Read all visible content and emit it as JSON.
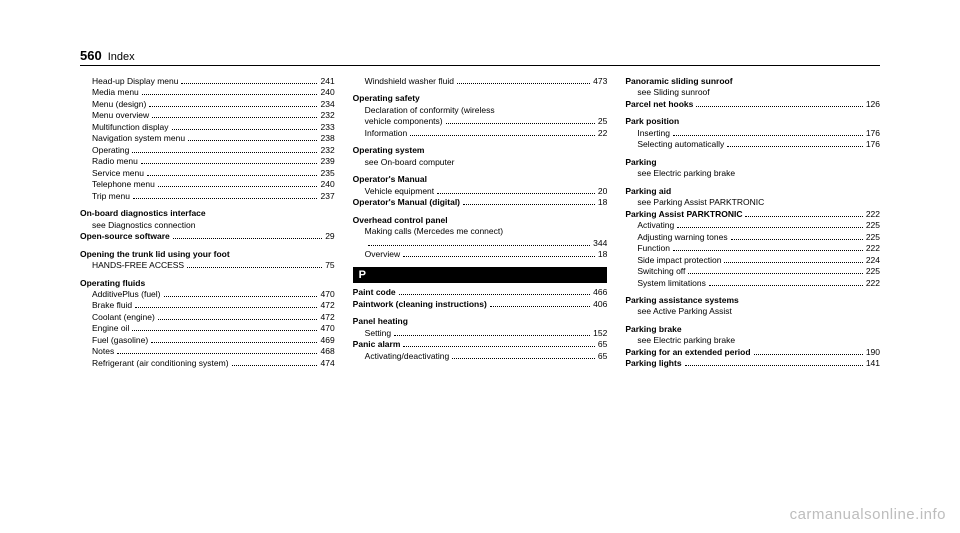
{
  "page": {
    "number": "560",
    "title": "Index"
  },
  "watermark": "carmanualsonline.info",
  "sectionTab": "P",
  "columns": [
    [
      {
        "type": "line",
        "sub": true,
        "label": "Head-up Display menu",
        "page": "241"
      },
      {
        "type": "line",
        "sub": true,
        "label": "Media menu",
        "page": "240"
      },
      {
        "type": "line",
        "sub": true,
        "label": "Menu (design)",
        "page": "234"
      },
      {
        "type": "line",
        "sub": true,
        "label": "Menu overview",
        "page": "232"
      },
      {
        "type": "line",
        "sub": true,
        "label": "Multifunction display",
        "page": "233"
      },
      {
        "type": "line",
        "sub": true,
        "label": "Navigation system menu",
        "page": "238"
      },
      {
        "type": "line",
        "sub": true,
        "label": "Operating",
        "page": "232"
      },
      {
        "type": "line",
        "sub": true,
        "label": "Radio menu",
        "page": "239"
      },
      {
        "type": "line",
        "sub": true,
        "label": "Service menu",
        "page": "235"
      },
      {
        "type": "line",
        "sub": true,
        "label": "Telephone menu",
        "page": "240"
      },
      {
        "type": "line",
        "sub": true,
        "label": "Trip menu",
        "page": "237"
      },
      {
        "type": "heading",
        "label": "On-board diagnostics interface"
      },
      {
        "type": "plain",
        "sub": true,
        "label": "see Diagnostics connection"
      },
      {
        "type": "line",
        "bold": true,
        "label": "Open-source software",
        "page": "29"
      },
      {
        "type": "heading",
        "label": "Opening the trunk lid using your foot"
      },
      {
        "type": "line",
        "sub": true,
        "label": "HANDS-FREE ACCESS",
        "page": "75"
      },
      {
        "type": "heading",
        "label": "Operating fluids"
      },
      {
        "type": "line",
        "sub": true,
        "label": "AdditivePlus (fuel)",
        "page": "470"
      },
      {
        "type": "line",
        "sub": true,
        "label": "Brake fluid",
        "page": "472"
      },
      {
        "type": "line",
        "sub": true,
        "label": "Coolant (engine)",
        "page": "472"
      },
      {
        "type": "line",
        "sub": true,
        "label": "Engine oil",
        "page": "470"
      },
      {
        "type": "line",
        "sub": true,
        "label": "Fuel (gasoline)",
        "page": "469"
      },
      {
        "type": "line",
        "sub": true,
        "label": "Notes",
        "page": "468"
      },
      {
        "type": "line",
        "sub": true,
        "label": "Refrigerant (air conditioning system)",
        "page": "474"
      }
    ],
    [
      {
        "type": "line",
        "sub": true,
        "label": "Windshield washer fluid",
        "page": "473"
      },
      {
        "type": "heading",
        "label": "Operating safety"
      },
      {
        "type": "plain",
        "sub": true,
        "label": "Declaration of conformity (wireless"
      },
      {
        "type": "line",
        "sub": true,
        "label": "vehicle components)",
        "page": "25"
      },
      {
        "type": "line",
        "sub": true,
        "label": "Information",
        "page": "22"
      },
      {
        "type": "heading",
        "label": "Operating system"
      },
      {
        "type": "plain",
        "sub": true,
        "label": "see On-board computer"
      },
      {
        "type": "heading",
        "label": "Operator's Manual"
      },
      {
        "type": "line",
        "sub": true,
        "label": "Vehicle equipment",
        "page": "20"
      },
      {
        "type": "line",
        "bold": true,
        "label": "Operator's Manual (digital)",
        "page": "18"
      },
      {
        "type": "heading",
        "label": "Overhead control panel"
      },
      {
        "type": "plain",
        "sub": true,
        "label": "Making calls (Mercedes me connect)"
      },
      {
        "type": "line",
        "sub": true,
        "label": "",
        "page": "344"
      },
      {
        "type": "line",
        "sub": true,
        "label": "Overview",
        "page": "18"
      },
      {
        "type": "tab"
      },
      {
        "type": "line",
        "bold": true,
        "label": "Paint code",
        "page": "466"
      },
      {
        "type": "line",
        "bold": true,
        "label": "Paintwork (cleaning instructions)",
        "page": "406"
      },
      {
        "type": "heading",
        "label": "Panel heating"
      },
      {
        "type": "line",
        "sub": true,
        "label": "Setting",
        "page": "152"
      },
      {
        "type": "line",
        "bold": true,
        "label": "Panic alarm",
        "page": "65"
      },
      {
        "type": "line",
        "sub": true,
        "label": "Activating/deactivating",
        "page": "65"
      }
    ],
    [
      {
        "type": "heading",
        "first": true,
        "label": "Panoramic sliding sunroof"
      },
      {
        "type": "plain",
        "sub": true,
        "label": "see Sliding sunroof"
      },
      {
        "type": "line",
        "bold": true,
        "label": "Parcel net hooks",
        "page": "126"
      },
      {
        "type": "heading",
        "label": "Park position"
      },
      {
        "type": "line",
        "sub": true,
        "label": "Inserting",
        "page": "176"
      },
      {
        "type": "line",
        "sub": true,
        "label": "Selecting automatically",
        "page": "176"
      },
      {
        "type": "heading",
        "label": "Parking"
      },
      {
        "type": "plain",
        "sub": true,
        "label": "see Electric parking brake"
      },
      {
        "type": "heading",
        "label": "Parking aid"
      },
      {
        "type": "plain",
        "sub": true,
        "label": "see Parking Assist PARKTRONIC"
      },
      {
        "type": "line",
        "bold": true,
        "label": "Parking Assist PARKTRONIC",
        "page": "222"
      },
      {
        "type": "line",
        "sub": true,
        "label": "Activating",
        "page": "225"
      },
      {
        "type": "line",
        "sub": true,
        "label": "Adjusting warning tones",
        "page": "225"
      },
      {
        "type": "line",
        "sub": true,
        "label": "Function",
        "page": "222"
      },
      {
        "type": "line",
        "sub": true,
        "label": "Side impact protection",
        "page": "224"
      },
      {
        "type": "line",
        "sub": true,
        "label": "Switching off",
        "page": "225"
      },
      {
        "type": "line",
        "sub": true,
        "label": "System limitations",
        "page": "222"
      },
      {
        "type": "heading",
        "label": "Parking assistance systems"
      },
      {
        "type": "plain",
        "sub": true,
        "label": "see Active Parking Assist"
      },
      {
        "type": "heading",
        "label": "Parking brake"
      },
      {
        "type": "plain",
        "sub": true,
        "label": "see Electric parking brake"
      },
      {
        "type": "line",
        "bold": true,
        "label": "Parking for an extended period",
        "page": "190"
      },
      {
        "type": "line",
        "bold": true,
        "label": "Parking lights",
        "page": "141"
      }
    ]
  ]
}
